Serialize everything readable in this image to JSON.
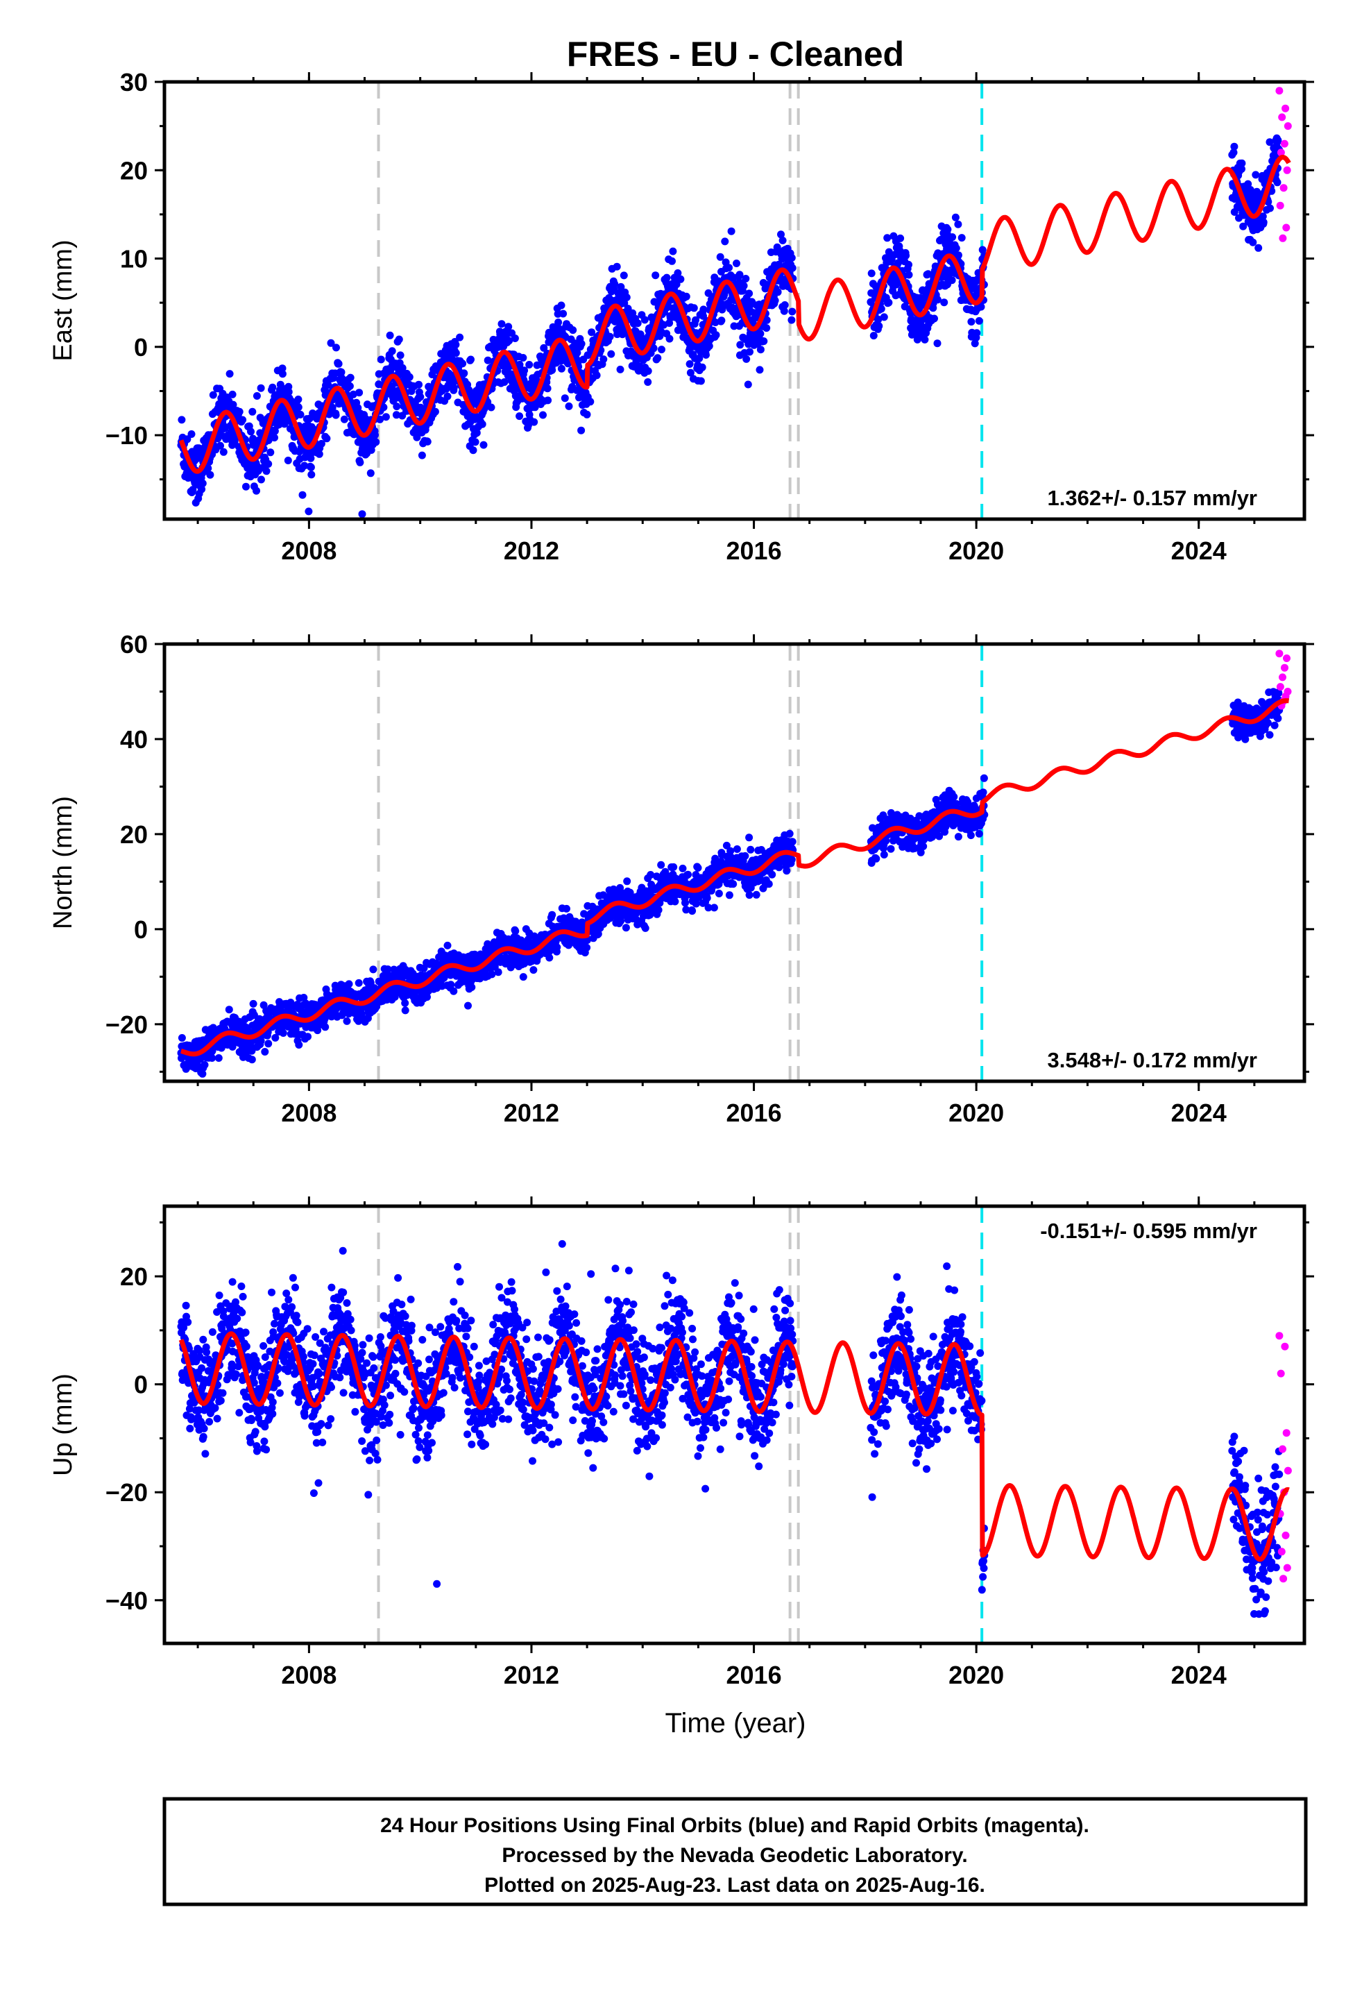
{
  "title": "FRES  - EU - Cleaned",
  "xlabel": "Time (year)",
  "footer": {
    "line1": "24 Hour Positions Using Final Orbits (blue) and Rapid Orbits (magenta).",
    "line2": "Processed by the Nevada Geodetic Laboratory.",
    "line3": "Plotted on 2025-Aug-23. Last data on 2025-Aug-16."
  },
  "colors": {
    "final_orbits": "#0000ff",
    "rapid_orbits": "#ff00ff",
    "model": "#ff0000",
    "gray_break": "#c8c8c8",
    "cyan_break": "#00e5ee"
  },
  "chart_data": [
    {
      "type": "scatter",
      "ylabel": "East (mm)",
      "xlim": [
        2005.4,
        2025.9
      ],
      "ylim": [
        -19.5,
        30
      ],
      "xticks": [
        2008,
        2012,
        2016,
        2020,
        2024
      ],
      "yticks": [
        -10,
        0,
        10,
        20,
        30
      ],
      "rate_label": "1.362+/- 0.157 mm/yr",
      "gray_breaks": [
        2009.25,
        2016.65,
        2016.8
      ],
      "cyan_breaks": [
        2020.1
      ],
      "model": {
        "intercept": -11.5,
        "t0": 2005.7,
        "rate": 1.362,
        "amp": 3.0,
        "phase_year": 2006.5,
        "offsets": [
          [
            2013.0,
            2.5
          ],
          [
            2016.8,
            -2.5
          ],
          [
            2020.1,
            3.0
          ]
        ]
      },
      "data_segments": [
        [
          2005.7,
          2016.7
        ],
        [
          2018.1,
          2020.15
        ],
        [
          2024.6,
          2025.45
        ]
      ],
      "rapid_segment": [
        2025.45,
        2025.62
      ],
      "scatter_sd": 1.8,
      "rapid_points": [
        29,
        27,
        26,
        25,
        23,
        22,
        20,
        18,
        16,
        13.5,
        12.3
      ]
    },
    {
      "type": "scatter",
      "ylabel": "North (mm)",
      "xlim": [
        2005.4,
        2025.9
      ],
      "ylim": [
        -32,
        60
      ],
      "xticks": [
        2008,
        2012,
        2016,
        2020,
        2024
      ],
      "yticks": [
        -20,
        0,
        20,
        40,
        60
      ],
      "rate_label": "3.548+/- 0.172 mm/yr",
      "gray_breaks": [
        2009.25,
        2016.65,
        2016.8
      ],
      "cyan_breaks": [
        2020.1
      ],
      "model": {
        "intercept": -26.0,
        "t0": 2005.7,
        "rate": 3.548,
        "amp": 1.2,
        "phase_year": 2006.5,
        "offsets": [
          [
            2013.0,
            2.5
          ],
          [
            2016.8,
            -2.0
          ],
          [
            2020.1,
            2.0
          ]
        ]
      },
      "data_segments": [
        [
          2005.7,
          2016.7
        ],
        [
          2018.1,
          2020.15
        ],
        [
          2024.6,
          2025.45
        ]
      ],
      "rapid_segment": [
        2025.45,
        2025.62
      ],
      "scatter_sd": 1.8,
      "rapid_points": [
        58,
        57,
        55,
        53,
        51,
        50,
        49,
        48,
        47
      ]
    },
    {
      "type": "scatter",
      "ylabel": "Up (mm)",
      "xlim": [
        2005.4,
        2025.9
      ],
      "ylim": [
        -48,
        33
      ],
      "xticks": [
        2008,
        2012,
        2016,
        2020,
        2024
      ],
      "yticks": [
        -40,
        -20,
        0,
        20
      ],
      "rate_label": "-0.151+/- 0.595 mm/yr",
      "gray_breaks": [
        2009.25,
        2016.65,
        2016.8
      ],
      "cyan_breaks": [
        2020.1
      ],
      "model": {
        "intercept": 3.0,
        "t0": 2005.7,
        "rate": -0.151,
        "amp": 6.5,
        "phase_year": 2006.6,
        "offsets": [
          [
            2020.1,
            -26.0
          ]
        ]
      },
      "data_segments": [
        [
          2005.7,
          2016.7
        ],
        [
          2018.1,
          2020.15
        ],
        [
          2024.6,
          2025.45
        ]
      ],
      "rapid_segment": [
        2025.45,
        2025.62
      ],
      "scatter_sd": 5.0,
      "rapid_points": [
        9,
        7,
        2,
        -9,
        -12,
        -16,
        -20,
        -24,
        -28,
        -31,
        -34,
        -36
      ]
    }
  ]
}
